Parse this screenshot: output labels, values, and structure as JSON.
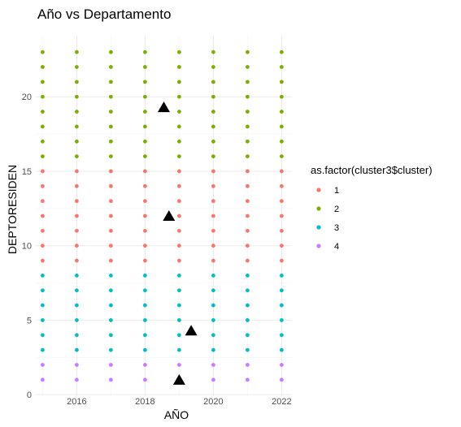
{
  "chart_data": {
    "type": "scatter",
    "title": "Año vs Departamento",
    "xlabel": "AÑO",
    "ylabel": "DEPTORESIDEN",
    "xlim": [
      2014.8,
      2022.3
    ],
    "ylim": [
      -0.1,
      24.1
    ],
    "x_ticks": [
      2016,
      2018,
      2020,
      2022
    ],
    "y_ticks": [
      0,
      5,
      10,
      15,
      20
    ],
    "x_tick_labels": [
      "2016",
      "2018",
      "2020",
      "2022"
    ],
    "y_tick_labels": [
      "0",
      "5",
      "10",
      "15",
      "20"
    ],
    "grid": true,
    "legend": {
      "title": "as.factor(cluster3$cluster)",
      "position": "right",
      "entries": [
        {
          "label": "1",
          "color": "#F8766D"
        },
        {
          "label": "2",
          "color": "#7CAE00"
        },
        {
          "label": "3",
          "color": "#00BFC4"
        },
        {
          "label": "4",
          "color": "#C77CFF"
        }
      ]
    },
    "x": [
      2015,
      2016,
      2017,
      2018,
      2019,
      2020,
      2021,
      2022
    ],
    "series": [
      {
        "name": "1",
        "color": "#F8766D",
        "y_values": [
          9,
          10,
          11,
          12,
          13,
          14,
          15
        ]
      },
      {
        "name": "2",
        "color": "#7CAE00",
        "y_values": [
          16,
          17,
          18,
          19,
          20,
          21,
          22,
          23
        ]
      },
      {
        "name": "3",
        "color": "#00BFC4",
        "y_values": [
          3,
          4,
          5,
          6,
          7,
          8
        ]
      },
      {
        "name": "4",
        "color": "#C77CFF",
        "y_values": [
          1,
          2
        ]
      }
    ],
    "centroids": [
      {
        "x": 2018.55,
        "y": 19.3
      },
      {
        "x": 2018.7,
        "y": 12.0
      },
      {
        "x": 2019.35,
        "y": 4.3
      },
      {
        "x": 2019.0,
        "y": 1.0
      }
    ],
    "centroid_color": "#000000"
  }
}
